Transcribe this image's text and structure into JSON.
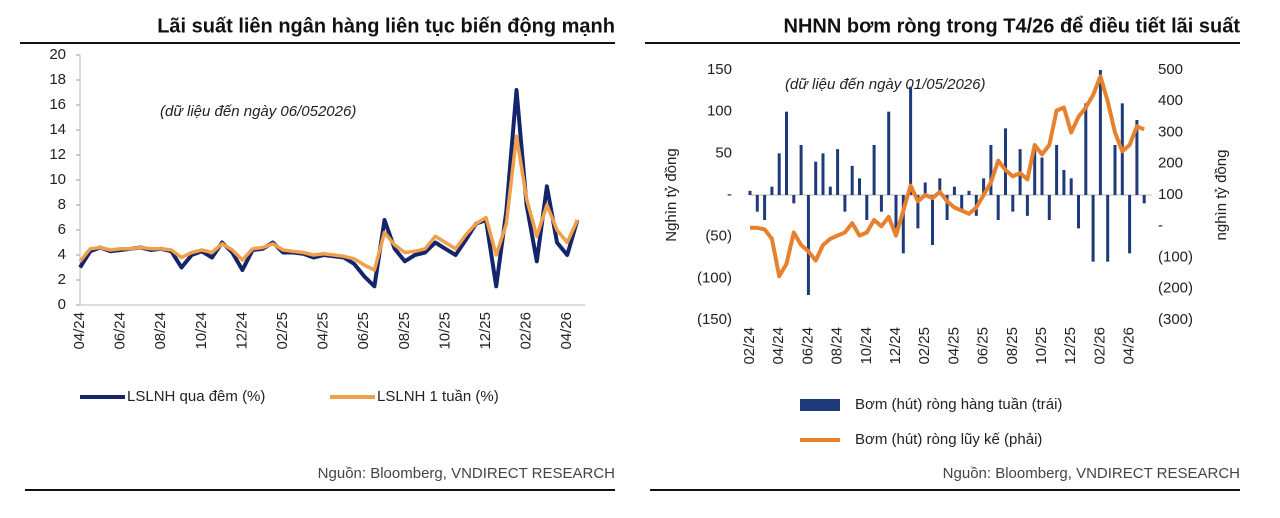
{
  "chart_data": [
    {
      "type": "line",
      "title": "Lãi suất liên ngân hàng liên tục biến động mạnh",
      "annotation": "(dữ liệu đến ngày 06/052026)",
      "source": "Nguồn: Bloomberg, VNDIRECT RESEARCH",
      "categories": [
        "04/24",
        null,
        null,
        null,
        "06/24",
        null,
        null,
        null,
        "08/24",
        null,
        null,
        null,
        "10/24",
        null,
        null,
        null,
        "12/24",
        null,
        null,
        null,
        "02/25",
        null,
        null,
        null,
        "04/25",
        null,
        null,
        null,
        "06/25",
        null,
        null,
        null,
        "08/25",
        null,
        null,
        null,
        "10/25",
        null,
        null,
        null,
        "12/25",
        null,
        null,
        null,
        "02/26",
        null,
        null,
        null,
        "04/26",
        null
      ],
      "series": [
        {
          "name": "LSLNH qua đêm (%)",
          "color": "#15256b",
          "values": [
            3.0,
            4.3,
            4.6,
            4.3,
            4.4,
            4.5,
            4.6,
            4.4,
            4.5,
            4.3,
            3.0,
            4.0,
            4.3,
            3.8,
            5.0,
            4.2,
            2.8,
            4.4,
            4.5,
            5.0,
            4.2,
            4.2,
            4.1,
            3.8,
            4.0,
            3.9,
            3.8,
            3.3,
            2.3,
            1.5,
            6.8,
            4.5,
            3.5,
            4.0,
            4.2,
            5.0,
            4.5,
            4.0,
            5.2,
            6.5,
            6.8,
            1.5,
            7.5,
            17.2,
            8.0,
            3.5,
            9.5,
            5.0,
            4.0,
            6.8
          ]
        },
        {
          "name": "LSLNH 1 tuần (%)",
          "color": "#f0a04b",
          "values": [
            3.5,
            4.5,
            4.6,
            4.4,
            4.5,
            4.5,
            4.6,
            4.5,
            4.5,
            4.4,
            3.8,
            4.2,
            4.4,
            4.2,
            4.9,
            4.4,
            3.6,
            4.5,
            4.6,
            4.9,
            4.4,
            4.3,
            4.2,
            4.0,
            4.1,
            4.0,
            3.9,
            3.7,
            3.2,
            2.8,
            5.8,
            4.8,
            4.2,
            4.3,
            4.5,
            5.5,
            5.0,
            4.5,
            5.6,
            6.5,
            7.0,
            4.0,
            6.5,
            13.5,
            8.5,
            5.5,
            8.0,
            6.0,
            5.0,
            6.8
          ]
        }
      ],
      "ylim": [
        0,
        20
      ],
      "yticks": [
        0,
        2,
        4,
        6,
        8,
        10,
        12,
        14,
        16,
        18,
        20
      ]
    },
    {
      "type": "combo",
      "title": "NHNN bơm ròng trong T4/26 để điều tiết lãi suất",
      "annotation": "(dữ liệu đến ngày 01/05/2026)",
      "source": "Nguồn: Bloomberg, VNDIRECT RESEARCH",
      "ylabel": "Nghìn tỷ đồng",
      "y2label": "nghìn tỷ đồng",
      "categories": [
        "02/24",
        null,
        null,
        null,
        "04/24",
        null,
        null,
        null,
        "06/24",
        null,
        null,
        null,
        "08/24",
        null,
        null,
        null,
        "10/24",
        null,
        null,
        null,
        "12/24",
        null,
        null,
        null,
        "02/25",
        null,
        null,
        null,
        "04/25",
        null,
        null,
        null,
        "06/25",
        null,
        null,
        null,
        "08/25",
        null,
        null,
        null,
        "10/25",
        null,
        null,
        null,
        "12/25",
        null,
        null,
        null,
        "02/26",
        null,
        null,
        null,
        "04/26",
        null,
        null
      ],
      "series": [
        {
          "name": "Bơm (hút) ròng hàng tuần (trái)",
          "mark": "bar",
          "color": "#1f3a7a",
          "values": [
            5,
            -20,
            -30,
            10,
            50,
            100,
            -10,
            60,
            -120,
            40,
            50,
            10,
            55,
            -20,
            35,
            20,
            -30,
            60,
            -20,
            100,
            -40,
            -70,
            130,
            -40,
            15,
            -60,
            20,
            -30,
            10,
            -20,
            5,
            -25,
            20,
            60,
            -30,
            80,
            -20,
            55,
            -25,
            60,
            45,
            -30,
            60,
            30,
            20,
            -40,
            110,
            -80,
            150,
            -80,
            60,
            110,
            -70,
            90,
            -10
          ]
        },
        {
          "name": "Bơm (hút) ròng lũy kế (phải)",
          "mark": "line",
          "axis": "y2",
          "color": "#e8812e",
          "values": [
            -5,
            -5,
            -10,
            -40,
            -160,
            -120,
            -20,
            -60,
            -80,
            -110,
            -60,
            -40,
            -30,
            -20,
            10,
            -30,
            -20,
            20,
            0,
            30,
            -30,
            50,
            130,
            80,
            100,
            90,
            110,
            80,
            60,
            50,
            40,
            60,
            100,
            140,
            210,
            180,
            160,
            170,
            150,
            260,
            230,
            260,
            370,
            380,
            300,
            350,
            380,
            420,
            480,
            400,
            300,
            240,
            260,
            320,
            310
          ]
        }
      ],
      "ylim": [
        -150,
        150
      ],
      "yticks": [
        {
          "value": -150,
          "label": "(150)"
        },
        {
          "value": -100,
          "label": "(100)"
        },
        {
          "value": -50,
          "label": "(50)"
        },
        {
          "value": 0,
          "label": "-"
        },
        50,
        100,
        150
      ],
      "y2lim": [
        -300,
        500
      ],
      "y2ticks": [
        {
          "value": -300,
          "label": "(300)"
        },
        {
          "value": -200,
          "label": "(200)"
        },
        {
          "value": -100,
          "label": "(100)"
        },
        {
          "value": 0,
          "label": "-"
        },
        100,
        200,
        300,
        400,
        500
      ]
    }
  ]
}
